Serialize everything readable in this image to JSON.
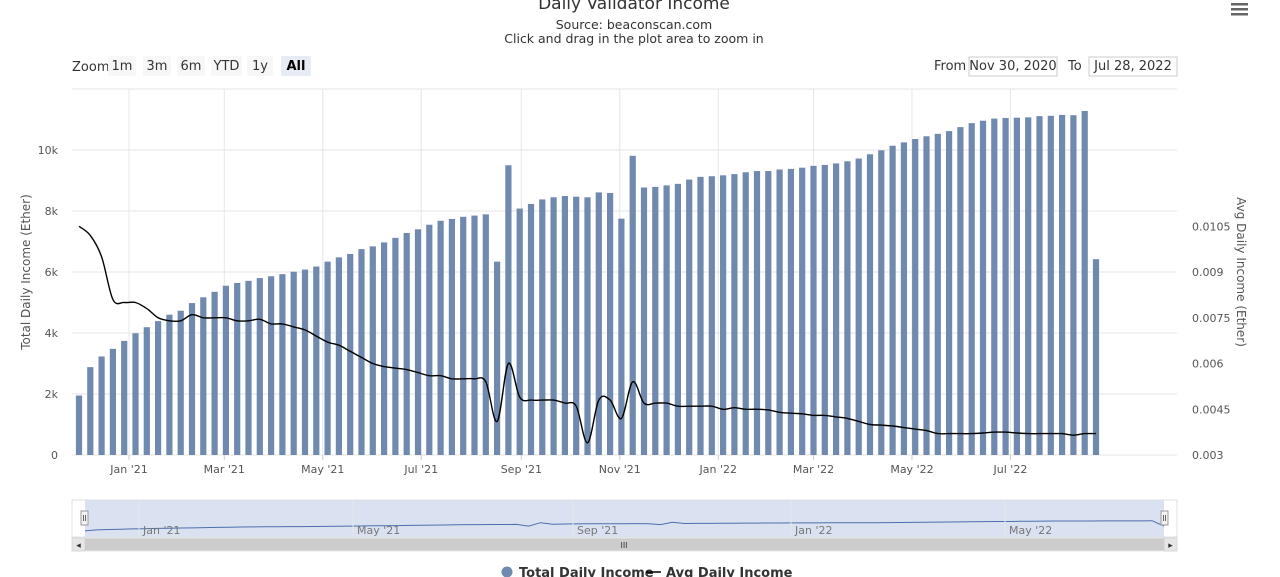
{
  "header": {
    "title": "Daily Validator Income",
    "source": "Source: beaconscan.com",
    "hint": "Click and drag in the plot area to zoom in"
  },
  "zoom": {
    "label": "Zoom",
    "buttons": [
      "1m",
      "3m",
      "6m",
      "YTD",
      "1y",
      "All"
    ],
    "selected": "All"
  },
  "range": {
    "from_label": "From",
    "from_value": "Nov 30, 2020",
    "to_label": "To",
    "to_value": "Jul 28, 2022"
  },
  "navigator": {
    "labels": [
      "Jan '21",
      "May '21",
      "Sep '21",
      "Jan '22",
      "May '22"
    ],
    "scroll_left": "◂",
    "scroll_right": "▸",
    "scroll_grip": "III"
  },
  "menu_icon": "hamburger-menu-icon",
  "colors": {
    "bar": "#7089ae",
    "line": "#000000",
    "navigator_fill": "#d4ddef",
    "navigator_line": "#4d6eae"
  },
  "chart_data": {
    "type": "bar",
    "title": "Daily Validator Income",
    "subtitle": "Source: beaconscan.com",
    "x_start": "2020-12-01",
    "x_step_days": 7,
    "xticks": [
      "Jan '21",
      "Mar '21",
      "May '21",
      "Jul '21",
      "Sep '21",
      "Nov '21",
      "Jan '22",
      "Mar '22",
      "May '22",
      "Jul '22"
    ],
    "xtick_dates": [
      "2021-01-01",
      "2021-03-01",
      "2021-05-01",
      "2021-07-01",
      "2021-09-01",
      "2021-11-01",
      "2022-01-01",
      "2022-03-01",
      "2022-05-01",
      "2022-07-01"
    ],
    "yaxis_left": {
      "label": "Total Daily Income (Ether)",
      "range": [
        0,
        12000
      ],
      "ticks": [
        "0",
        "2k",
        "4k",
        "6k",
        "8k",
        "10k"
      ],
      "tick_values": [
        0,
        2000,
        4000,
        6000,
        8000,
        10000
      ]
    },
    "yaxis_right": {
      "label": "Avg Daily Income (Ether)",
      "range": [
        0.003,
        0.015
      ],
      "ticks": [
        "0.003",
        "0.0045",
        "0.006",
        "0.0075",
        "0.009",
        "0.0105"
      ],
      "tick_values": [
        0.003,
        0.0045,
        0.006,
        0.0075,
        0.009,
        0.0105
      ]
    },
    "grid": true,
    "legend": {
      "placement": "bottom-center"
    },
    "series": [
      {
        "name": "Total Daily Income",
        "type": "bar",
        "axis": "left",
        "values": [
          1950,
          2880,
          3230,
          3480,
          3740,
          3990,
          4190,
          4390,
          4600,
          4730,
          4980,
          5170,
          5350,
          5550,
          5640,
          5710,
          5800,
          5860,
          5930,
          6010,
          6080,
          6180,
          6340,
          6480,
          6590,
          6750,
          6840,
          6970,
          7120,
          7280,
          7400,
          7550,
          7680,
          7740,
          7810,
          7850,
          7890,
          6340,
          9500,
          8080,
          8230,
          8380,
          8450,
          8490,
          8470,
          8450,
          8610,
          8590,
          7750,
          9810,
          8770,
          8790,
          8840,
          8890,
          9030,
          9120,
          9140,
          9170,
          9210,
          9270,
          9310,
          9310,
          9360,
          9380,
          9420,
          9480,
          9510,
          9560,
          9630,
          9720,
          9860,
          9990,
          10140,
          10250,
          10360,
          10450,
          10530,
          10620,
          10750,
          10880,
          10960,
          11030,
          11050,
          11060,
          11070,
          11110,
          11120,
          11150,
          11140,
          11280,
          6420
        ]
      },
      {
        "name": "Avg Daily Income",
        "type": "line",
        "axis": "right",
        "values": [
          0.0105,
          0.0102,
          0.0095,
          0.0081,
          0.008,
          0.008,
          0.0078,
          0.0075,
          0.0074,
          0.0074,
          0.0076,
          0.0075,
          0.0075,
          0.0075,
          0.0074,
          0.0074,
          0.00745,
          0.0073,
          0.0073,
          0.0072,
          0.0071,
          0.0069,
          0.0067,
          0.0066,
          0.0064,
          0.0062,
          0.006,
          0.0059,
          0.00585,
          0.0058,
          0.0057,
          0.0056,
          0.0056,
          0.0055,
          0.0055,
          0.0055,
          0.0054,
          0.0041,
          0.006,
          0.0049,
          0.0048,
          0.0048,
          0.0048,
          0.0047,
          0.0046,
          0.0034,
          0.0048,
          0.0048,
          0.0042,
          0.0054,
          0.0047,
          0.0047,
          0.0047,
          0.0046,
          0.0046,
          0.0046,
          0.0046,
          0.0045,
          0.00455,
          0.0045,
          0.0045,
          0.00448,
          0.0044,
          0.00437,
          0.00435,
          0.0043,
          0.0043,
          0.00425,
          0.0042,
          0.0041,
          0.004,
          0.00398,
          0.00395,
          0.0039,
          0.00385,
          0.0038,
          0.0037,
          0.0037,
          0.0037,
          0.0037,
          0.00372,
          0.00375,
          0.00375,
          0.00372,
          0.0037,
          0.0037,
          0.0037,
          0.0037,
          0.00365,
          0.0037,
          0.0037
        ]
      }
    ],
    "legend_items": [
      "Total Daily Income",
      "Avg Daily Income"
    ]
  }
}
